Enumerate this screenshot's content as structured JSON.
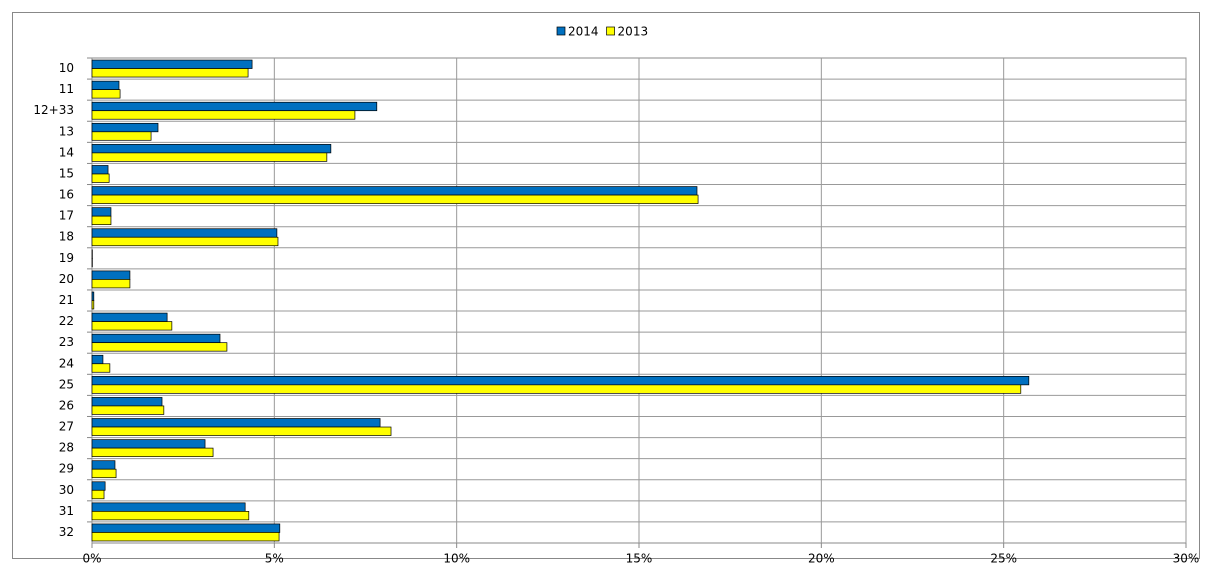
{
  "chart_data": {
    "type": "bar",
    "orientation": "horizontal",
    "categories": [
      "10",
      "11",
      "12+33",
      "13",
      "14",
      "15",
      "16",
      "17",
      "18",
      "19",
      "20",
      "21",
      "22",
      "23",
      "24",
      "25",
      "26",
      "27",
      "28",
      "29",
      "30",
      "31",
      "32"
    ],
    "series": [
      {
        "name": "2014",
        "color": "#0070c0",
        "values": [
          4.39,
          0.74,
          7.81,
          1.81,
          6.55,
          0.44,
          16.59,
          0.52,
          5.07,
          0.01,
          1.04,
          0.05,
          2.06,
          3.51,
          0.3,
          25.69,
          1.92,
          7.9,
          3.1,
          0.63,
          0.36,
          4.2,
          5.15
        ]
      },
      {
        "name": "2013",
        "color": "#ffff00",
        "values": [
          4.28,
          0.77,
          7.21,
          1.62,
          6.44,
          0.47,
          16.62,
          0.52,
          5.1,
          0.01,
          1.04,
          0.05,
          2.19,
          3.7,
          0.49,
          25.47,
          1.97,
          8.2,
          3.32,
          0.66,
          0.33,
          4.3,
          5.13
        ]
      }
    ],
    "xlim": [
      0,
      30
    ],
    "xticks": [
      {
        "value": 0,
        "label": "0%"
      },
      {
        "value": 5,
        "label": "5%"
      },
      {
        "value": 10,
        "label": "10%"
      },
      {
        "value": 15,
        "label": "15%"
      },
      {
        "value": 20,
        "label": "20%"
      },
      {
        "value": 25,
        "label": "25%"
      },
      {
        "value": 30,
        "label": "30%"
      }
    ],
    "grid": true,
    "legend": "top"
  }
}
